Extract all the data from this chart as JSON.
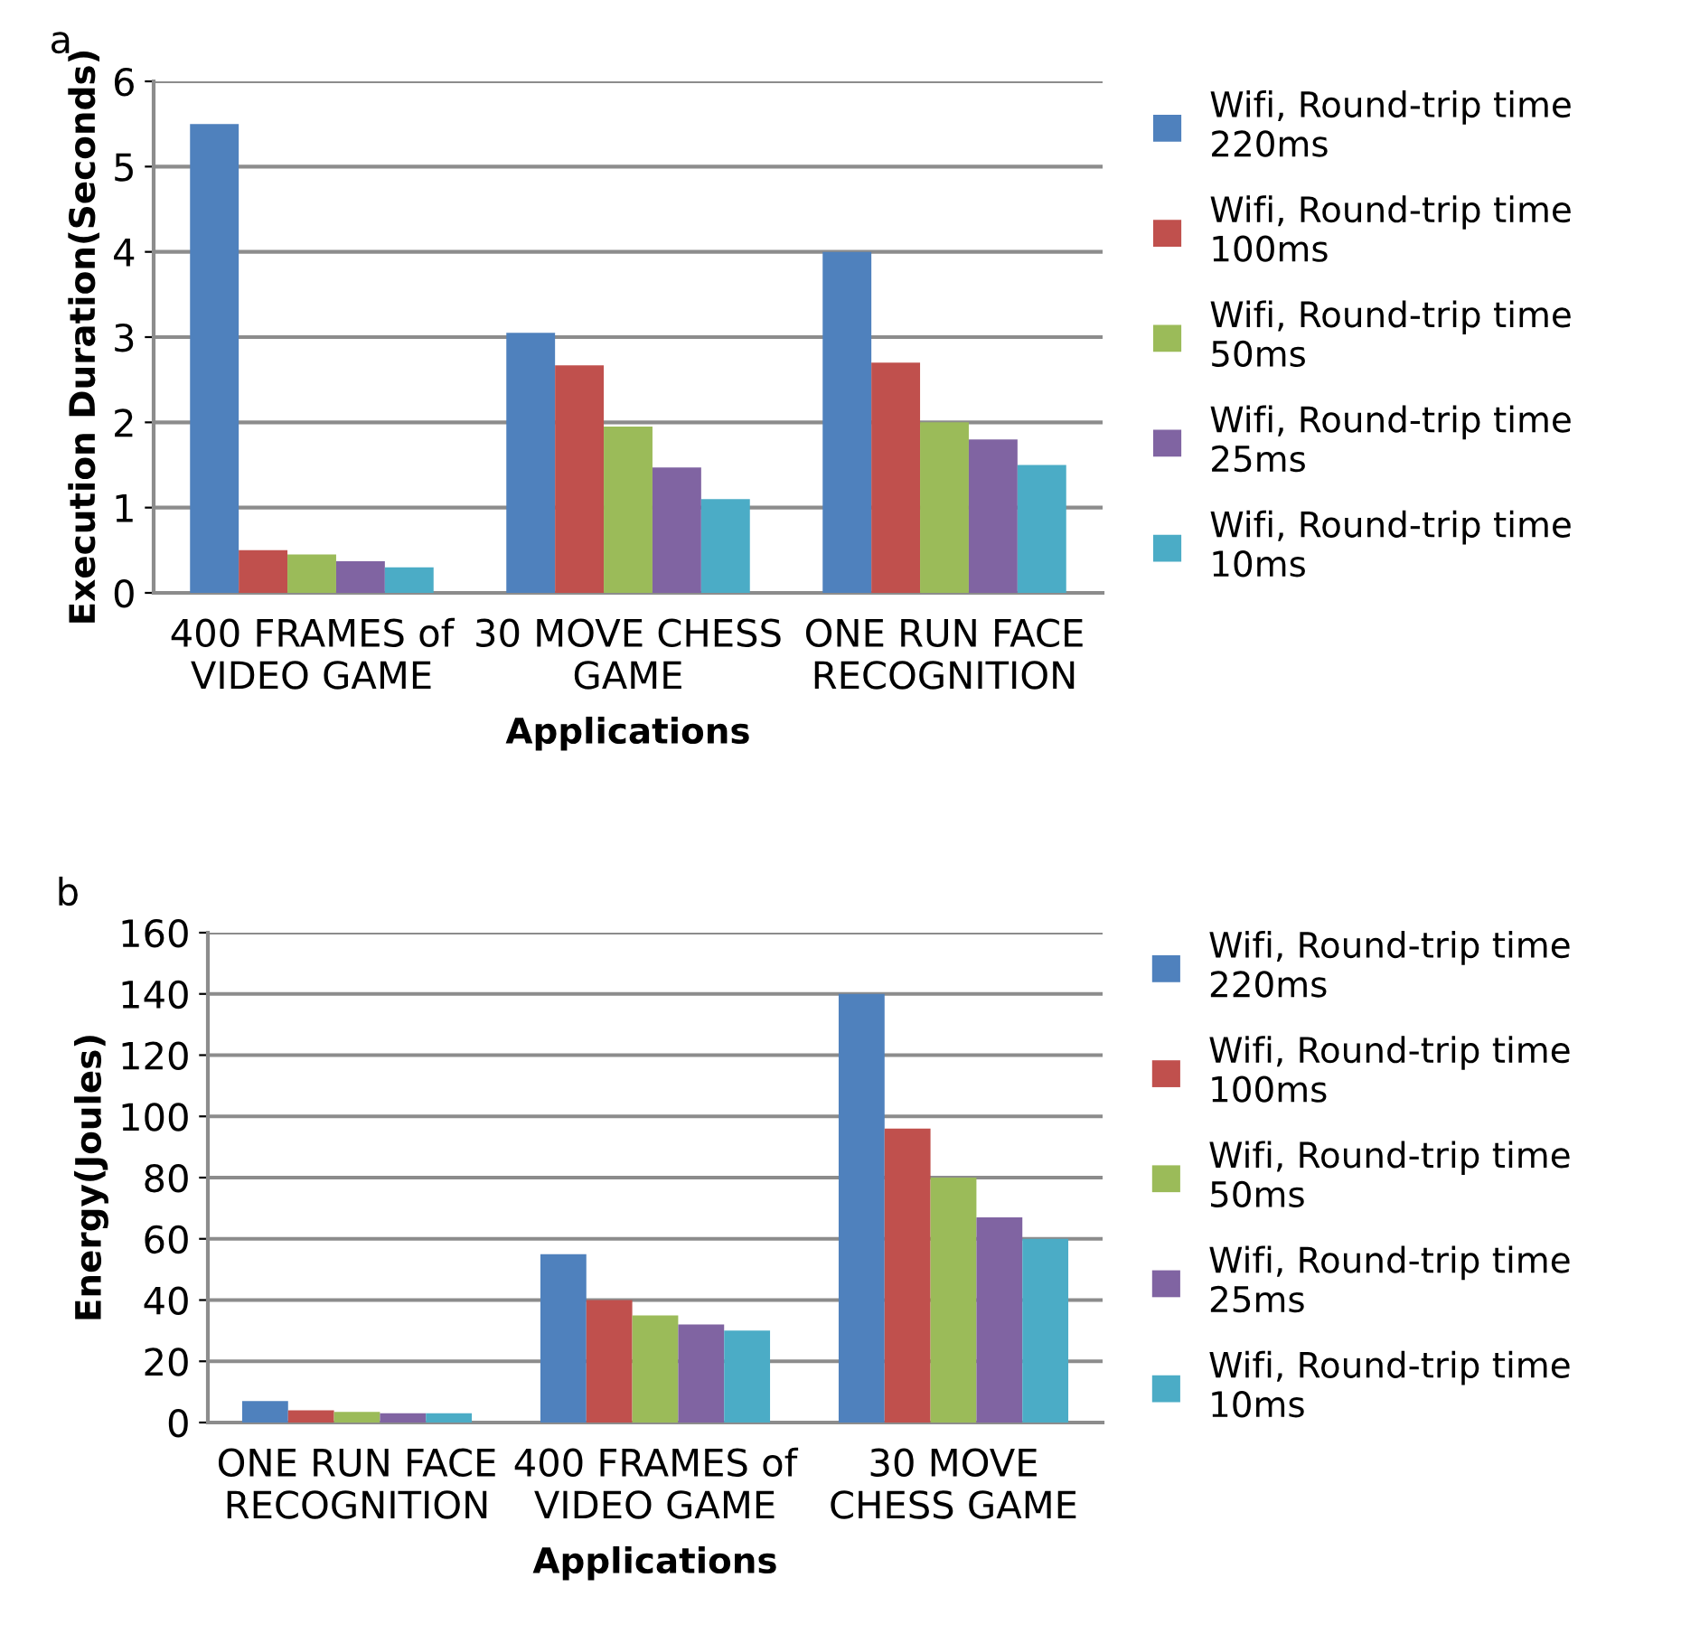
{
  "chart_data": [
    {
      "type": "bar",
      "title": "a",
      "xlabel": "Applications",
      "ylabel": "Execution Duration(Seconds)",
      "categories": [
        "400 FRAMES of\nVIDEO GAME",
        "30 MOVE CHESS\nGAME",
        "ONE RUN FACE\nRECOGNITION"
      ],
      "series": [
        {
          "name": "Wifi, Round-trip time\n220ms",
          "color": "#4f81bd",
          "values": [
            5.5,
            3.05,
            4.0
          ]
        },
        {
          "name": "Wifi, Round-trip time\n100ms",
          "color": "#c0504d",
          "values": [
            0.5,
            2.67,
            2.7
          ]
        },
        {
          "name": "Wifi, Round-trip time\n50ms",
          "color": "#9bbb59",
          "values": [
            0.45,
            1.95,
            2.0
          ]
        },
        {
          "name": "Wifi, Round-trip time\n25ms",
          "color": "#8064a2",
          "values": [
            0.37,
            1.47,
            1.8
          ]
        },
        {
          "name": "Wifi, Round-trip time\n10ms",
          "color": "#4bacc6",
          "values": [
            0.3,
            1.1,
            1.5
          ]
        }
      ],
      "ylim": [
        0,
        6
      ],
      "yticks": [
        0,
        1,
        2,
        3,
        4,
        5,
        6
      ],
      "grid": "y",
      "legend": "right"
    },
    {
      "type": "bar",
      "title": "b",
      "xlabel": "Applications",
      "ylabel": "Energy(Joules)",
      "categories": [
        "ONE RUN FACE\nRECOGNITION",
        "400 FRAMES of\nVIDEO GAME",
        "30 MOVE\nCHESS GAME"
      ],
      "series": [
        {
          "name": "Wifi, Round-trip time\n220ms",
          "color": "#4f81bd",
          "values": [
            7,
            55,
            140
          ]
        },
        {
          "name": "Wifi, Round-trip time\n100ms",
          "color": "#c0504d",
          "values": [
            4,
            40,
            96
          ]
        },
        {
          "name": "Wifi, Round-trip time\n50ms",
          "color": "#9bbb59",
          "values": [
            3.5,
            35,
            80
          ]
        },
        {
          "name": "Wifi, Round-trip time\n25ms",
          "color": "#8064a2",
          "values": [
            3,
            32,
            67
          ]
        },
        {
          "name": "Wifi, Round-trip time\n10ms",
          "color": "#4bacc6",
          "values": [
            3,
            30,
            60
          ]
        }
      ],
      "ylim": [
        0,
        160
      ],
      "yticks": [
        0,
        20,
        40,
        60,
        80,
        100,
        120,
        140,
        160
      ],
      "grid": "y",
      "legend": "right"
    }
  ]
}
